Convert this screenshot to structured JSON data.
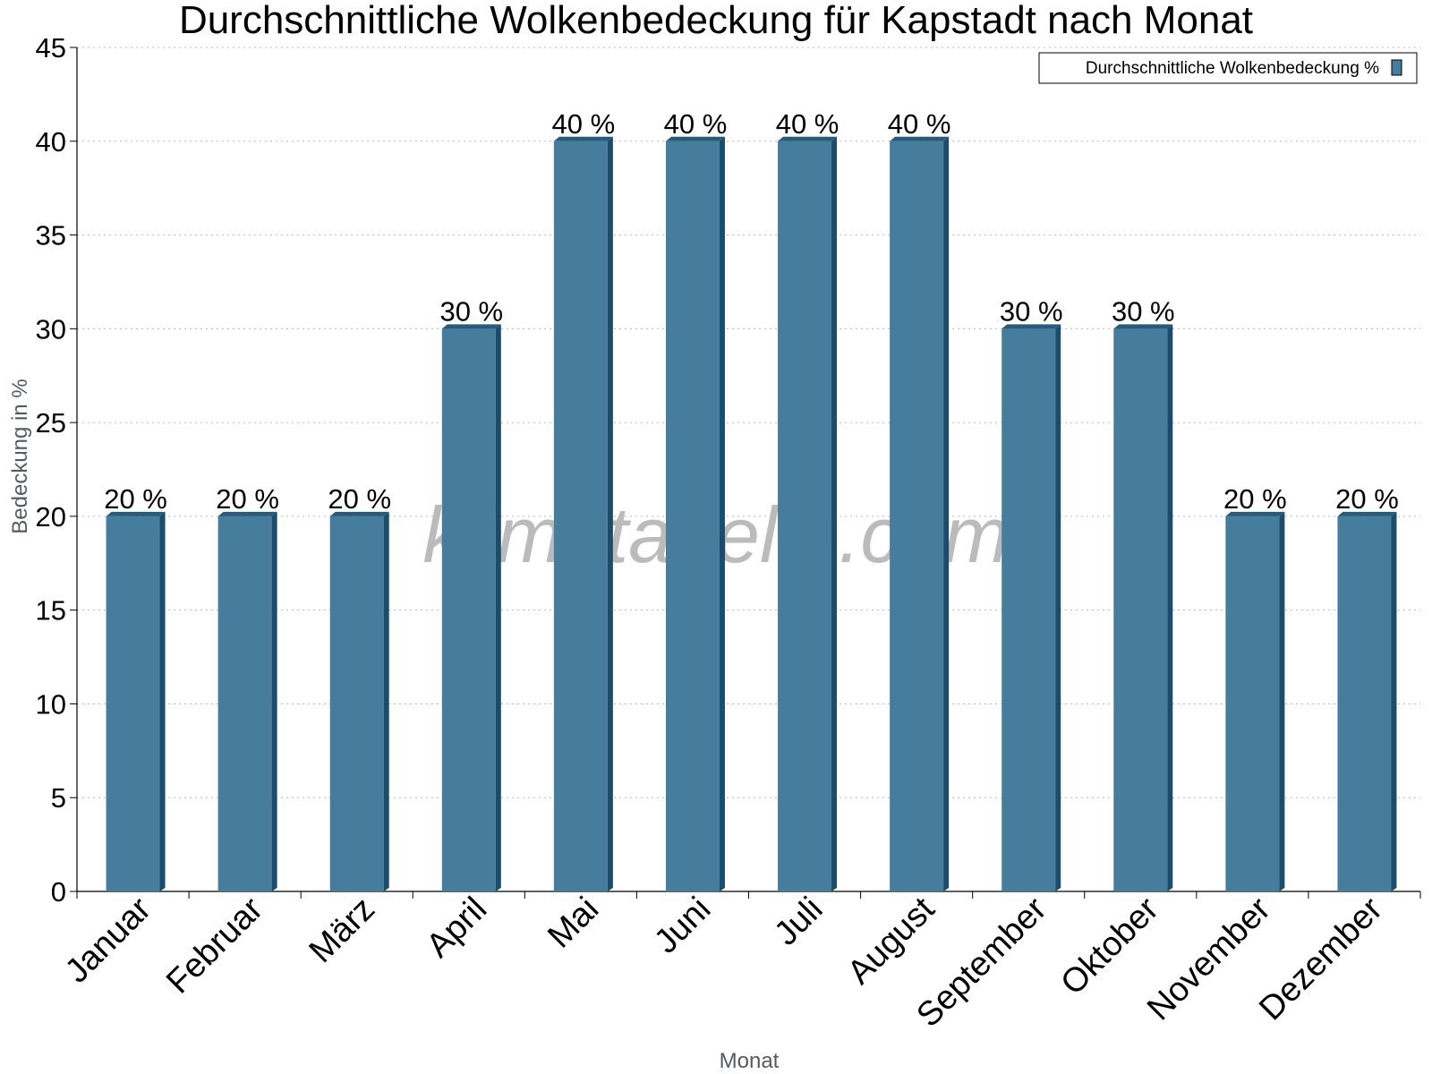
{
  "chart_data": {
    "type": "bar",
    "title": "Durchschnittliche Wolkenbedeckung für Kapstadt nach Monat",
    "xlabel": "Monat",
    "ylabel": "Bedeckung in %",
    "ylim": [
      0,
      45
    ],
    "yticks": [
      "0",
      "5",
      "10",
      "15",
      "20",
      "25",
      "30",
      "35",
      "40",
      "45"
    ],
    "categories": [
      "Januar",
      "Februar",
      "März",
      "April",
      "Mai",
      "Juni",
      "Juli",
      "August",
      "September",
      "Oktober",
      "November",
      "Dezember"
    ],
    "series": [
      {
        "name": "Durchschnittliche Wolkenbedeckung %",
        "values": [
          20,
          20,
          20,
          30,
          40,
          40,
          40,
          40,
          30,
          30,
          20,
          20
        ],
        "labels": [
          "20 %",
          "20 %",
          "20 %",
          "30 %",
          "40 %",
          "40 %",
          "40 %",
          "40 %",
          "30 %",
          "30 %",
          "20 %",
          "20 %"
        ]
      }
    ],
    "grid": true,
    "legend_position": "top-right",
    "watermark": "klimatabelle.com",
    "colors": {
      "bar_front": "#467c9c",
      "bar_side": "#1c4c6c",
      "bar_top": "#2a5a7a"
    }
  }
}
